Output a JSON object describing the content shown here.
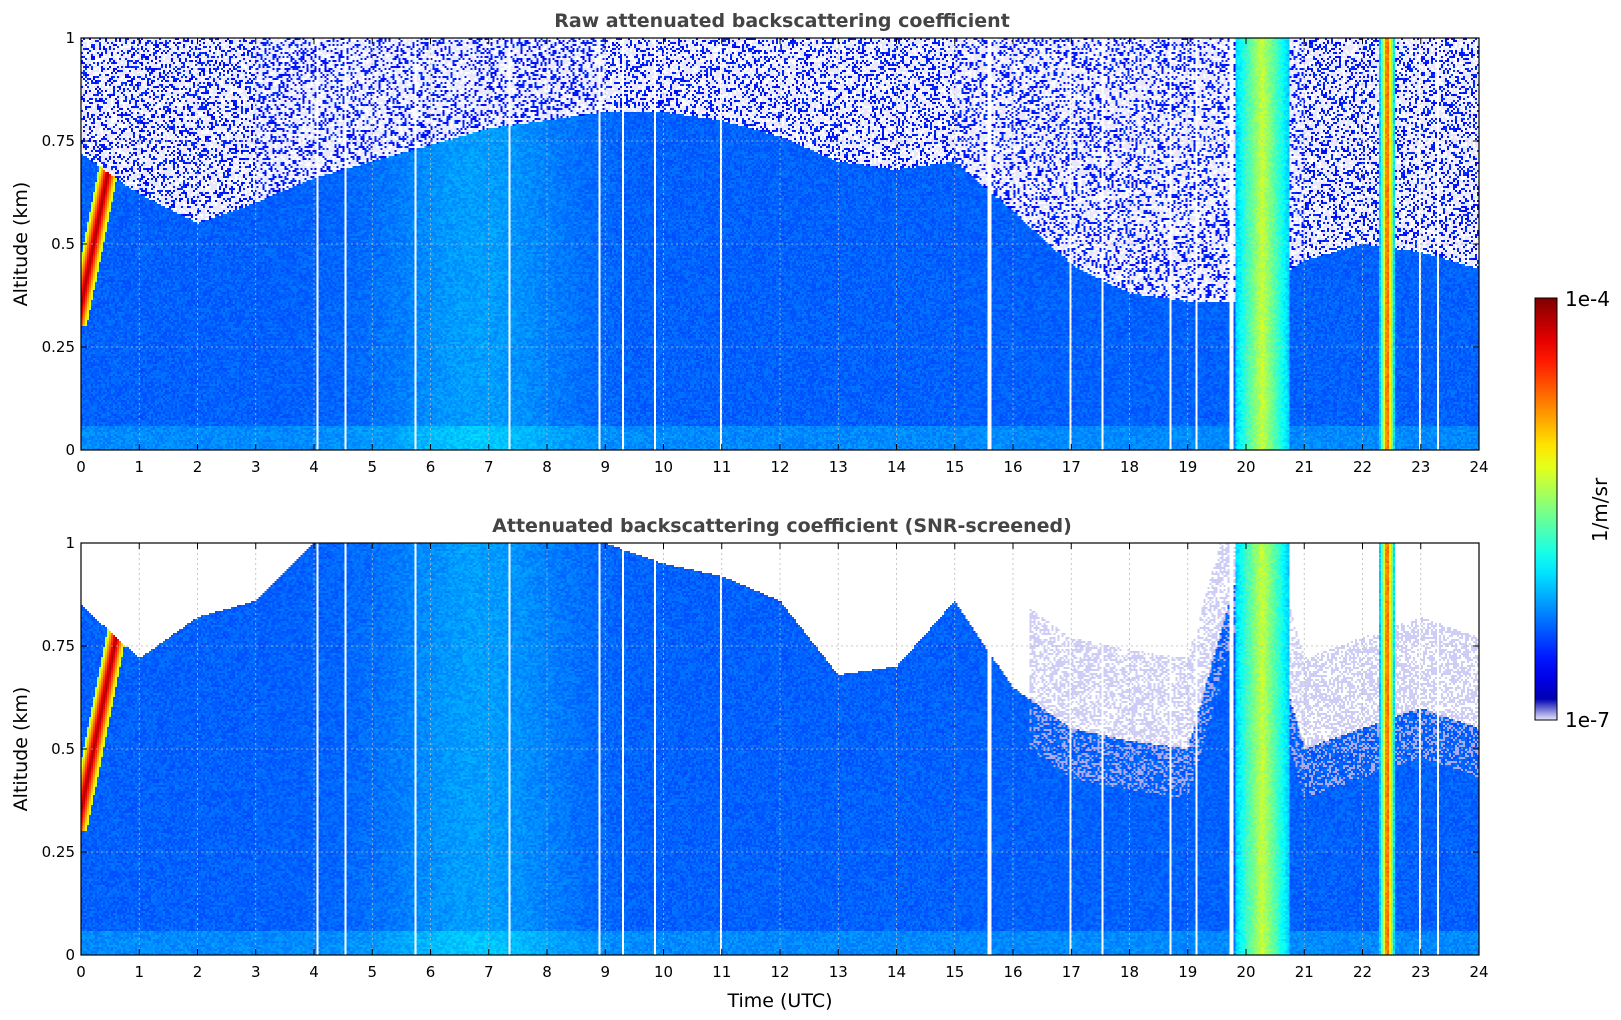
{
  "chart_data": [
    {
      "type": "heatmap",
      "title": "Raw attenuated backscattering coefficient",
      "xlabel": "",
      "ylabel": "Altitude (km)",
      "xlim": [
        0,
        24
      ],
      "ylim": [
        0,
        1
      ],
      "x_ticks": [
        "0",
        "1",
        "2",
        "3",
        "4",
        "5",
        "6",
        "7",
        "8",
        "9",
        "10",
        "11",
        "12",
        "13",
        "14",
        "15",
        "16",
        "17",
        "18",
        "19",
        "20",
        "21",
        "22",
        "23",
        "24"
      ],
      "y_ticks": [
        "0",
        "0.25",
        "0.5",
        "0.75",
        "1"
      ],
      "grid": true,
      "colormap": "jet",
      "color_scale": "log",
      "screened": false,
      "noise_top_km_by_hour": [
        0.72,
        0.62,
        0.55,
        0.6,
        0.66,
        0.7,
        0.74,
        0.78,
        0.8,
        0.82,
        0.82,
        0.8,
        0.76,
        0.7,
        0.68,
        0.7,
        0.58,
        0.45,
        0.38,
        0.36,
        0.36,
        0.46,
        0.5,
        0.48,
        0.44
      ],
      "gap_hours": [
        4.05,
        4.55,
        5.75,
        7.35,
        8.9,
        9.3,
        9.85,
        11.0,
        15.6,
        17.0,
        17.55,
        18.7,
        19.15,
        19.75,
        23.0,
        23.3
      ],
      "plumes": [
        {
          "start_h": 19.8,
          "end_h": 20.75,
          "level": 0.55
        },
        {
          "start_h": 22.3,
          "end_h": 22.55,
          "level": 0.8
        }
      ]
    },
    {
      "type": "heatmap",
      "title": "Attenuated backscattering coefficient (SNR-screened)",
      "xlabel": "Time (UTC)",
      "ylabel": "Altitude (km)",
      "xlim": [
        0,
        24
      ],
      "ylim": [
        0,
        1
      ],
      "x_ticks": [
        "0",
        "1",
        "2",
        "3",
        "4",
        "5",
        "6",
        "7",
        "8",
        "9",
        "10",
        "11",
        "12",
        "13",
        "14",
        "15",
        "16",
        "17",
        "18",
        "19",
        "20",
        "21",
        "22",
        "23",
        "24"
      ],
      "y_ticks": [
        "0",
        "0.25",
        "0.5",
        "0.75",
        "1"
      ],
      "grid": true,
      "colormap": "jet",
      "color_scale": "log",
      "screened": true,
      "screen_top_km_by_hour": [
        0.85,
        0.72,
        0.82,
        0.86,
        1.0,
        1.0,
        1.0,
        1.0,
        1.0,
        1.0,
        0.95,
        0.92,
        0.86,
        0.68,
        0.7,
        0.86,
        0.65,
        0.55,
        0.52,
        0.5,
        1.0,
        0.5,
        0.55,
        0.6,
        0.55
      ],
      "gap_hours": [
        4.05,
        4.55,
        5.75,
        7.35,
        8.9,
        9.3,
        9.85,
        11.0,
        15.6,
        17.0,
        17.55,
        18.7,
        19.15,
        19.75,
        23.0,
        23.3
      ],
      "plumes": [
        {
          "start_h": 19.8,
          "end_h": 20.75,
          "level": 0.55
        },
        {
          "start_h": 22.3,
          "end_h": 22.55,
          "level": 0.8
        }
      ]
    }
  ],
  "colorbar": {
    "label": "1/m/sr",
    "max_label": "1e-4",
    "min_label": "1e-7",
    "colormap": "jet",
    "scale": "log"
  }
}
